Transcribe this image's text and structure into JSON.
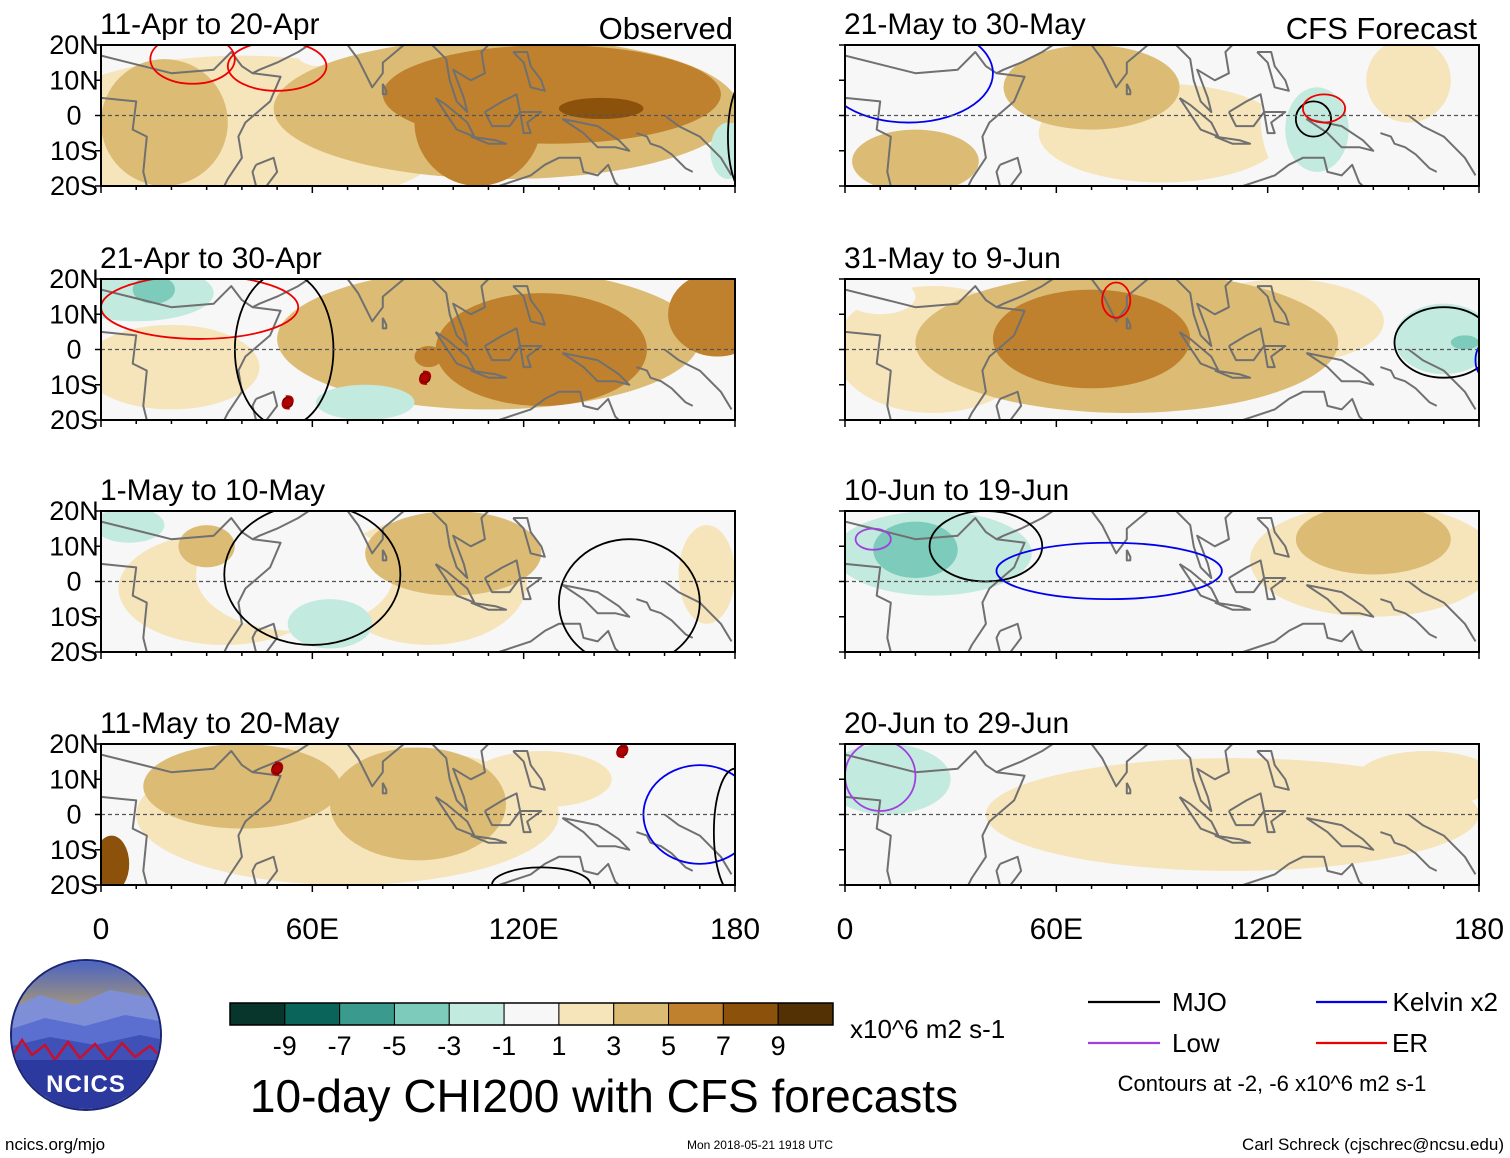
{
  "figure": {
    "main_title": "10-day CHI200 with CFS forecasts",
    "units": "x10^6 m2 s-1",
    "contour_note": "Contours at -2, -6 x10^6 m2 s-1",
    "footer_left": "ncics.org/mjo",
    "footer_center": "Mon 2018-05-21 1918 UTC",
    "footer_right": "Carl Schreck (cjschrec@ncsu.edu)",
    "logo_text": "NCICS"
  },
  "colors": {
    "land_outline": "#707070",
    "equator_line": "#555555",
    "colorbar": [
      "#08352c",
      "#0a6459",
      "#3a9a8d",
      "#7ccbbb",
      "#c3eade",
      "#f7f7f7",
      "#f6e4bb",
      "#dcbc74",
      "#bf812d",
      "#8c510a",
      "#543005"
    ]
  },
  "chart_data": {
    "type": "heatmap",
    "variable": "CHI200 anomaly (10-day mean)",
    "x_range": [
      0,
      180
    ],
    "y_range": [
      -20,
      20
    ],
    "x_ticks": [
      "0",
      "60E",
      "120E",
      "180"
    ],
    "x_tick_values": [
      0,
      60,
      120,
      180
    ],
    "y_ticks": [
      "20N",
      "10N",
      "0",
      "10S",
      "20S"
    ],
    "y_tick_values": [
      20,
      10,
      0,
      -10,
      -20
    ],
    "colorbar_ticks": [
      "-9",
      "-7",
      "-5",
      "-3",
      "-1",
      "1",
      "3",
      "5",
      "7",
      "9"
    ],
    "colorbar_levels": [
      -9,
      -7,
      -5,
      -3,
      -1,
      1,
      3,
      5,
      7,
      9
    ],
    "legend": [
      {
        "name": "MJO",
        "color": "#000000"
      },
      {
        "name": "Kelvin x2",
        "color": "#0000ee"
      },
      {
        "name": "Low",
        "color": "#a040e0"
      },
      {
        "name": "ER",
        "color": "#ee0000"
      }
    ],
    "columns": [
      {
        "label": "Observed"
      },
      {
        "label": "CFS Forecast"
      }
    ],
    "panels": [
      {
        "title": "11-Apr to 20-Apr",
        "source": "Observed",
        "blobs": [
          {
            "lon": 142,
            "lat": 2,
            "rx": 12,
            "ry": 3,
            "val": 7
          },
          {
            "lon": 128,
            "lat": 6,
            "rx": 48,
            "ry": 14,
            "val": 5
          },
          {
            "lon": 107,
            "lat": -2,
            "rx": 18,
            "ry": 18,
            "val": 5
          },
          {
            "lon": 115,
            "lat": 2,
            "rx": 66,
            "ry": 20,
            "val": 3
          },
          {
            "lon": 18,
            "lat": -2,
            "rx": 18,
            "ry": 18,
            "val": 3
          },
          {
            "lon": 40,
            "lat": -5,
            "rx": 60,
            "ry": 22,
            "val": 1
          },
          {
            "lon": 62,
            "lat": 17,
            "rx": 6,
            "ry": 3,
            "val": -1
          },
          {
            "lon": 178,
            "lat": -10,
            "rx": 5,
            "ry": 8,
            "val": -3
          }
        ],
        "contours": [
          {
            "kind": "ER",
            "lon": 26,
            "lat": 16,
            "rx": 12,
            "ry": 7
          },
          {
            "kind": "ER",
            "lon": 50,
            "lat": 14,
            "rx": 14,
            "ry": 7
          },
          {
            "kind": "MJO",
            "lon": 183,
            "lat": -6,
            "rx": 5,
            "ry": 16
          }
        ],
        "storms": []
      },
      {
        "title": "21-May to 30-May",
        "source": "CFS Forecast",
        "blobs": [
          {
            "lon": 70,
            "lat": 8,
            "rx": 25,
            "ry": 12,
            "val": 3
          },
          {
            "lon": 20,
            "lat": -13,
            "rx": 18,
            "ry": 9,
            "val": 3
          },
          {
            "lon": 90,
            "lat": -5,
            "rx": 35,
            "ry": 14,
            "val": 1
          },
          {
            "lon": 135,
            "lat": -1,
            "rx": 17,
            "ry": 22,
            "val": -1
          },
          {
            "lon": 134,
            "lat": -4,
            "rx": 9,
            "ry": 12,
            "val": -3
          },
          {
            "lon": 160,
            "lat": 10,
            "rx": 12,
            "ry": 12,
            "val": 1
          }
        ],
        "contours": [
          {
            "kind": "MJO",
            "lon": 133,
            "lat": -1,
            "rx": 5,
            "ry": 5
          },
          {
            "kind": "ER",
            "lon": 136,
            "lat": 2,
            "rx": 6,
            "ry": 4
          },
          {
            "kind": "Kelvin x2",
            "lon": 18,
            "lat": 12,
            "rx": 24,
            "ry": 14
          }
        ],
        "storms": []
      },
      {
        "title": "21-Apr to 30-Apr",
        "source": "Observed",
        "blobs": [
          {
            "lon": 125,
            "lat": 0,
            "rx": 30,
            "ry": 16,
            "val": 5
          },
          {
            "lon": 175,
            "lat": 10,
            "rx": 14,
            "ry": 12,
            "val": 5
          },
          {
            "lon": 110,
            "lat": 3,
            "rx": 60,
            "ry": 20,
            "val": 3
          },
          {
            "lon": 93,
            "lat": -2,
            "rx": 4,
            "ry": 3,
            "val": 5
          },
          {
            "lon": 10,
            "lat": 16,
            "rx": 22,
            "ry": 8,
            "val": -3
          },
          {
            "lon": 15,
            "lat": 17,
            "rx": 6,
            "ry": 4,
            "val": -5
          },
          {
            "lon": 65,
            "lat": -8,
            "rx": 25,
            "ry": 14,
            "val": -1
          },
          {
            "lon": 75,
            "lat": -15,
            "rx": 14,
            "ry": 5,
            "val": -3
          },
          {
            "lon": 20,
            "lat": -5,
            "rx": 25,
            "ry": 12,
            "val": 1
          }
        ],
        "contours": [
          {
            "kind": "ER",
            "lon": 28,
            "lat": 12,
            "rx": 28,
            "ry": 9
          },
          {
            "kind": "MJO",
            "lon": 52,
            "lat": 0,
            "rx": 14,
            "ry": 22
          }
        ],
        "storms": [
          {
            "lon": 53,
            "lat": -15
          },
          {
            "lon": 92,
            "lat": -8
          }
        ]
      },
      {
        "title": "31-May to 9-Jun",
        "source": "CFS Forecast",
        "blobs": [
          {
            "lon": 70,
            "lat": 3,
            "rx": 28,
            "ry": 14,
            "val": 5
          },
          {
            "lon": 80,
            "lat": 2,
            "rx": 60,
            "ry": 20,
            "val": 3
          },
          {
            "lon": 25,
            "lat": 0,
            "rx": 28,
            "ry": 18,
            "val": 1
          },
          {
            "lon": 125,
            "lat": 8,
            "rx": 28,
            "ry": 12,
            "val": 1
          },
          {
            "lon": 170,
            "lat": 3,
            "rx": 14,
            "ry": 10,
            "val": -3
          },
          {
            "lon": 176,
            "lat": 2,
            "rx": 4,
            "ry": 2,
            "val": -5
          },
          {
            "lon": 10,
            "lat": 15,
            "rx": 10,
            "ry": 5,
            "val": -1
          }
        ],
        "contours": [
          {
            "kind": "ER",
            "lon": 77,
            "lat": 14,
            "rx": 4,
            "ry": 5
          },
          {
            "kind": "MJO",
            "lon": 170,
            "lat": 2,
            "rx": 14,
            "ry": 10
          },
          {
            "kind": "Kelvin x2",
            "lon": 182,
            "lat": -3,
            "rx": 3,
            "ry": 5
          }
        ],
        "storms": []
      },
      {
        "title": "1-May to 10-May",
        "source": "Observed",
        "blobs": [
          {
            "lon": 30,
            "lat": 10,
            "rx": 8,
            "ry": 6,
            "val": 3
          },
          {
            "lon": 100,
            "lat": 8,
            "rx": 25,
            "ry": 12,
            "val": 3
          },
          {
            "lon": 35,
            "lat": -2,
            "rx": 30,
            "ry": 16,
            "val": 1
          },
          {
            "lon": 93,
            "lat": 0,
            "rx": 28,
            "ry": 18,
            "val": 1
          },
          {
            "lon": 65,
            "lat": -12,
            "rx": 12,
            "ry": 7,
            "val": -3
          },
          {
            "lon": 55,
            "lat": 2,
            "rx": 28,
            "ry": 16,
            "val": -1
          },
          {
            "lon": 150,
            "lat": 4,
            "rx": 25,
            "ry": 20,
            "val": -1
          },
          {
            "lon": 8,
            "lat": 16,
            "rx": 10,
            "ry": 5,
            "val": -3
          },
          {
            "lon": 172,
            "lat": 2,
            "rx": 8,
            "ry": 14,
            "val": 1
          }
        ],
        "contours": [
          {
            "kind": "MJO",
            "lon": 60,
            "lat": 2,
            "rx": 25,
            "ry": 20
          },
          {
            "kind": "MJO",
            "lon": 150,
            "lat": -6,
            "rx": 20,
            "ry": 18
          }
        ],
        "storms": []
      },
      {
        "title": "10-Jun to 19-Jun",
        "source": "CFS Forecast",
        "blobs": [
          {
            "lon": 25,
            "lat": 8,
            "rx": 28,
            "ry": 12,
            "val": -3
          },
          {
            "lon": 20,
            "lat": 9,
            "rx": 12,
            "ry": 8,
            "val": -5
          },
          {
            "lon": 40,
            "lat": 2,
            "rx": 45,
            "ry": 20,
            "val": -1
          },
          {
            "lon": 110,
            "lat": -15,
            "rx": 20,
            "ry": 6,
            "val": -1
          },
          {
            "lon": 150,
            "lat": 12,
            "rx": 22,
            "ry": 10,
            "val": 3
          },
          {
            "lon": 150,
            "lat": 6,
            "rx": 35,
            "ry": 16,
            "val": 1
          }
        ],
        "contours": [
          {
            "kind": "MJO",
            "lon": 40,
            "lat": 10,
            "rx": 16,
            "ry": 10
          },
          {
            "kind": "Kelvin x2",
            "lon": 75,
            "lat": 3,
            "rx": 32,
            "ry": 8
          },
          {
            "kind": "Low",
            "lon": 8,
            "lat": 12,
            "rx": 5,
            "ry": 3
          }
        ],
        "storms": []
      },
      {
        "title": "11-May to 20-May",
        "source": "Observed",
        "blobs": [
          {
            "lon": 3,
            "lat": -14,
            "rx": 5,
            "ry": 8,
            "val": 7
          },
          {
            "lon": 40,
            "lat": 8,
            "rx": 28,
            "ry": 12,
            "val": 3
          },
          {
            "lon": 90,
            "lat": 3,
            "rx": 25,
            "ry": 16,
            "val": 3
          },
          {
            "lon": 70,
            "lat": 0,
            "rx": 60,
            "ry": 20,
            "val": 1
          },
          {
            "lon": 125,
            "lat": 10,
            "rx": 20,
            "ry": 8,
            "val": 1
          },
          {
            "lon": 170,
            "lat": -2,
            "rx": 28,
            "ry": 18,
            "val": -1
          }
        ],
        "contours": [
          {
            "kind": "Kelvin x2",
            "lon": 170,
            "lat": 0,
            "rx": 16,
            "ry": 14
          },
          {
            "kind": "MJO",
            "lon": 125,
            "lat": -20,
            "rx": 14,
            "ry": 5
          },
          {
            "kind": "MJO",
            "lon": 180,
            "lat": -5,
            "rx": 6,
            "ry": 18
          }
        ],
        "storms": [
          {
            "lon": 50,
            "lat": 13
          },
          {
            "lon": 148,
            "lat": 18
          }
        ]
      },
      {
        "title": "20-Jun to 29-Jun",
        "source": "CFS Forecast",
        "blobs": [
          {
            "lon": 12,
            "lat": 10,
            "rx": 18,
            "ry": 10,
            "val": -3
          },
          {
            "lon": 25,
            "lat": 2,
            "rx": 30,
            "ry": 18,
            "val": -1
          },
          {
            "lon": 110,
            "lat": 0,
            "rx": 70,
            "ry": 16,
            "val": 1
          },
          {
            "lon": 165,
            "lat": 10,
            "rx": 20,
            "ry": 8,
            "val": 1
          }
        ],
        "contours": [
          {
            "kind": "Low",
            "lon": 10,
            "lat": 11,
            "rx": 10,
            "ry": 10
          }
        ],
        "storms": []
      }
    ]
  }
}
